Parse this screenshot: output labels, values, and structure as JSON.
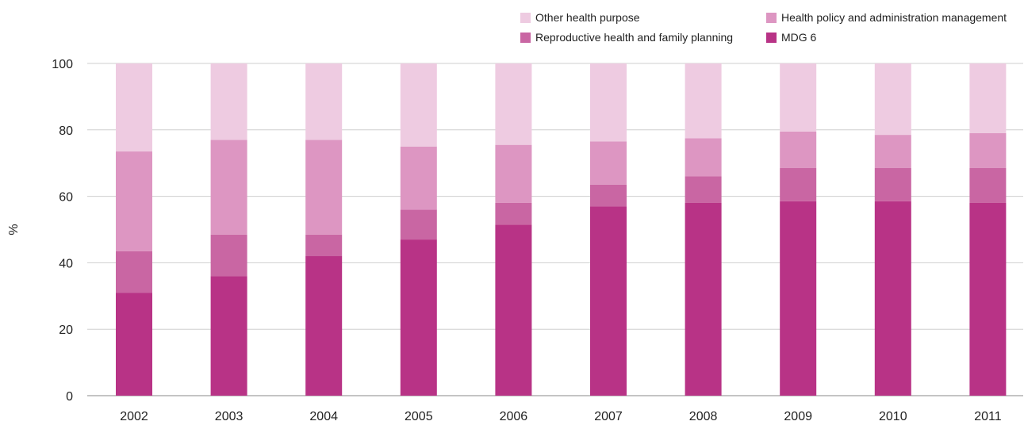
{
  "chart_data": {
    "type": "bar",
    "stacked": true,
    "title": "",
    "xlabel": "",
    "ylabel": "%",
    "ylim": [
      0,
      100
    ],
    "yticks": [
      0,
      20,
      40,
      60,
      80,
      100
    ],
    "grid": "horizontal",
    "legend_position": "top-right",
    "categories": [
      "2002",
      "2003",
      "2004",
      "2005",
      "2006",
      "2007",
      "2008",
      "2009",
      "2010",
      "2011"
    ],
    "series": [
      {
        "name": "MDG 6",
        "color": "#b83386",
        "values": [
          31,
          36,
          42,
          47,
          51.5,
          57,
          58,
          58.5,
          58.5,
          58
        ]
      },
      {
        "name": "Reproductive health and family planning",
        "color": "#c966a3",
        "values": [
          12.5,
          12.5,
          6.5,
          9,
          6.5,
          6.5,
          8,
          10,
          10,
          10.5
        ]
      },
      {
        "name": "Health policy and administration management",
        "color": "#dd96c2",
        "values": [
          30,
          28.5,
          28.5,
          19,
          17.5,
          13,
          11.5,
          11,
          10,
          10.5
        ]
      },
      {
        "name": "Other health purpose",
        "color": "#eecbe1",
        "values": [
          26.5,
          23,
          23,
          25,
          24.5,
          23.5,
          22.5,
          20.5,
          21.5,
          21
        ]
      }
    ]
  },
  "legend": {
    "order": [
      "Other health purpose",
      "Health policy and administration management",
      "Reproductive health and family planning",
      "MDG 6"
    ]
  }
}
